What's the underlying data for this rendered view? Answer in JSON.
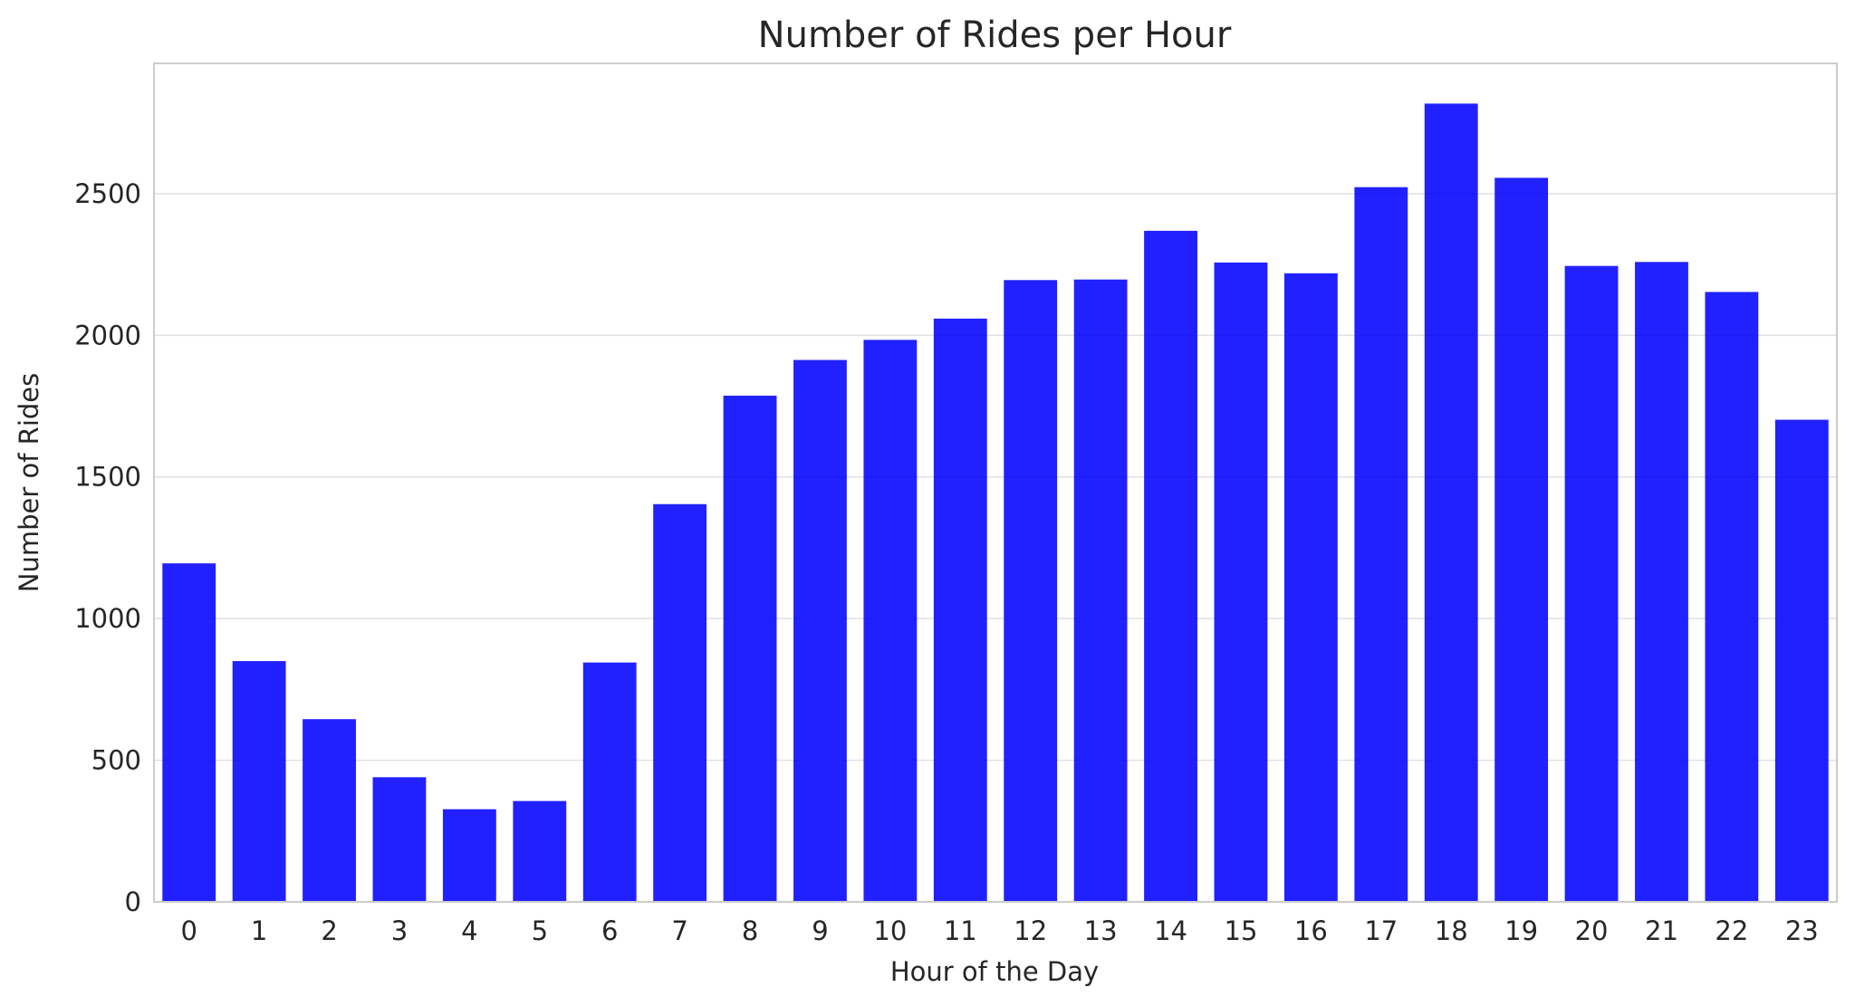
{
  "chart_data": {
    "type": "bar",
    "title": "Number of Rides per Hour",
    "xlabel": "Hour of the Day",
    "ylabel": "Number of Rides",
    "categories": [
      "0",
      "1",
      "2",
      "3",
      "4",
      "5",
      "6",
      "7",
      "8",
      "9",
      "10",
      "11",
      "12",
      "13",
      "14",
      "15",
      "16",
      "17",
      "18",
      "19",
      "20",
      "21",
      "22",
      "23"
    ],
    "values": [
      1195,
      850,
      645,
      440,
      327,
      356,
      845,
      1404,
      1787,
      1913,
      1984,
      2059,
      2195,
      2197,
      2369,
      2257,
      2219,
      2523,
      2818,
      2556,
      2245,
      2259,
      2153,
      1702
    ],
    "ylim": [
      0,
      2960
    ],
    "yticks": [
      0,
      500,
      1000,
      1500,
      2000,
      2500
    ],
    "grid": "horizontal",
    "bar_color": "#0000ff",
    "bar_fill_opacity": 0.87
  }
}
